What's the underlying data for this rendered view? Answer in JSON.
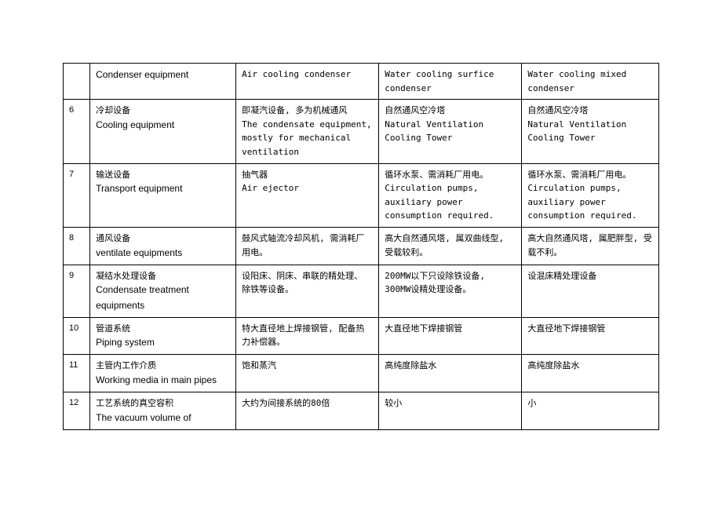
{
  "table": {
    "border_color": "#000000",
    "background_color": "#ffffff",
    "text_color": "#000000",
    "font_size_mono": 11,
    "font_size_sans": 12,
    "columns": [
      "num",
      "category",
      "col1",
      "col2",
      "col3"
    ],
    "column_widths_pct": [
      4.5,
      24.5,
      24,
      24,
      23
    ],
    "rows": [
      {
        "num": "",
        "cat_en": "Condenser equipment",
        "c1_mono": "Air cooling condenser",
        "c2_mono": "Water cooling surfice condenser",
        "c3_mono": "Water cooling mixed condenser"
      },
      {
        "num": "6",
        "cat_zh": "冷却设备",
        "cat_en": "Cooling equipment",
        "c1_zh": "即凝汽设备, 多为机械通风",
        "c1_mono": "The condensate equipment, mostly for mechanical ventilation",
        "c2_zh": "自然通风空冷塔",
        "c2_mono": "Natural Ventilation Cooling Tower",
        "c3_zh": "自然通风空冷塔",
        "c3_mono": "Natural Ventilation Cooling Tower"
      },
      {
        "num": "7",
        "cat_zh": "输送设备",
        "cat_en": "Transport equipment",
        "c1_zh": "抽气器",
        "c1_mono": "Air ejector",
        "c2_zh": "循环水泵、需消耗厂用电。",
        "c2_mono": "Circulation pumps, auxiliary power consumption required.",
        "c3_zh": "循环水泵、需消耗厂用电。",
        "c3_mono": "Circulation pumps, auxiliary power consumption required."
      },
      {
        "num": "8",
        "cat_zh": "通风设备",
        "cat_en": "ventilate equipments",
        "c1_zh": "鼓风式轴流冷却风机, 需消耗厂用电。",
        "c2_zh": "高大自然通风塔, 属双曲线型, 受载较利。",
        "c3_zh": "高大自然通风塔, 属肥胖型, 受载不利。"
      },
      {
        "num": "9",
        "cat_zh": "凝结水处理设备",
        "cat_en": "Condensate treatment equipments",
        "c1_zh": "设阳床、阴床、串联的精处理、 除铁等设备。",
        "c2_zh": "200MW以下只设除铁设备, 300MW设精处理设备。",
        "c3_zh": "设混床精处理设备"
      },
      {
        "num": "10",
        "cat_zh": "管道系统",
        "cat_en": "Piping system",
        "c1_zh": "特大直径地上焊接钢管, 配备热力补偿器。",
        "c2_zh": "大直径地下焊接钢管",
        "c3_zh": "大直径地下焊接钢管"
      },
      {
        "num": "11",
        "cat_zh": "主管内工作介质",
        "cat_en": "Working media in main pipes",
        "c1_zh": "饱和蒸汽",
        "c2_zh": "高纯度除盐水",
        "c3_zh": "高纯度除盐水"
      },
      {
        "num": "12",
        "cat_zh": "工艺系统的真空容积",
        "cat_en": "The vacuum volume of",
        "c1_zh": "大约为间接系统的80倍",
        "c2_zh": "较小",
        "c3_zh": "小"
      }
    ]
  }
}
